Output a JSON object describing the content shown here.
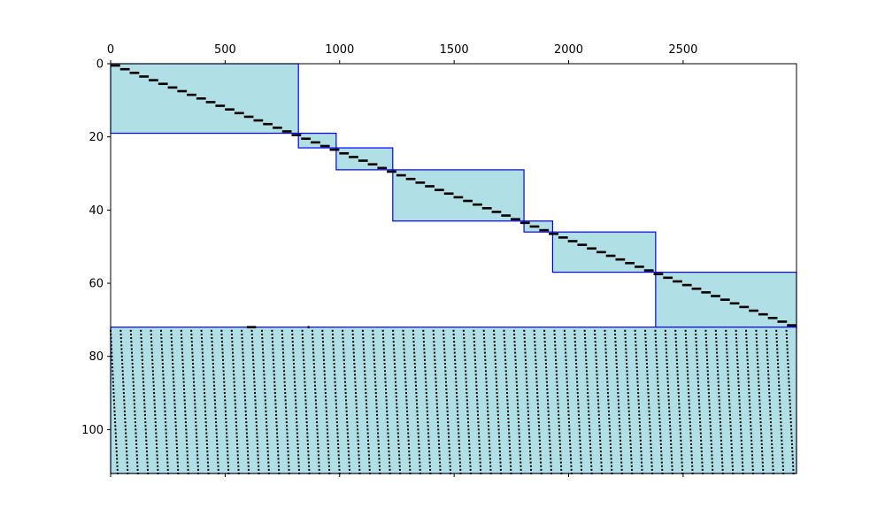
{
  "chart_data": {
    "type": "heatmap",
    "xlim": [
      0,
      2995
    ],
    "ylim": [
      112,
      0
    ],
    "x_axis_position": "top",
    "grid": false,
    "x_ticks": [
      0,
      500,
      1000,
      1500,
      2000,
      2500
    ],
    "y_ticks": [
      0,
      20,
      40,
      60,
      80,
      100
    ],
    "x_tick_labels": [
      "0",
      "500",
      "1000",
      "1500",
      "2000",
      "2500"
    ],
    "y_tick_labels": [
      "0",
      "20",
      "40",
      "60",
      "80",
      "100"
    ],
    "block_fill": "#b0e0e6",
    "block_edge": "#0000ff",
    "entry_color": "#000000",
    "blocks": [
      {
        "x0": 0,
        "x1": 820,
        "y0": 0,
        "y1": 19
      },
      {
        "x0": 820,
        "x1": 985,
        "y0": 19,
        "y1": 23
      },
      {
        "x0": 985,
        "x1": 1232,
        "y0": 23,
        "y1": 29
      },
      {
        "x0": 1232,
        "x1": 1805,
        "y0": 29,
        "y1": 43
      },
      {
        "x0": 1805,
        "x1": 1930,
        "y0": 43,
        "y1": 46
      },
      {
        "x0": 1930,
        "x1": 2380,
        "y0": 46,
        "y1": 57
      },
      {
        "x0": 2380,
        "x1": 2995,
        "y0": 57,
        "y1": 72
      },
      {
        "x0": 0,
        "x1": 2995,
        "y0": 72,
        "y1": 112
      }
    ],
    "diagonal_rows": 72,
    "dense_rows": [
      73,
      112
    ],
    "dense_column_groups": 68,
    "isolated_entries": [
      {
        "x": 595,
        "y": 72,
        "width": 40
      },
      {
        "x": 860,
        "y": 72,
        "width": 8
      }
    ]
  }
}
